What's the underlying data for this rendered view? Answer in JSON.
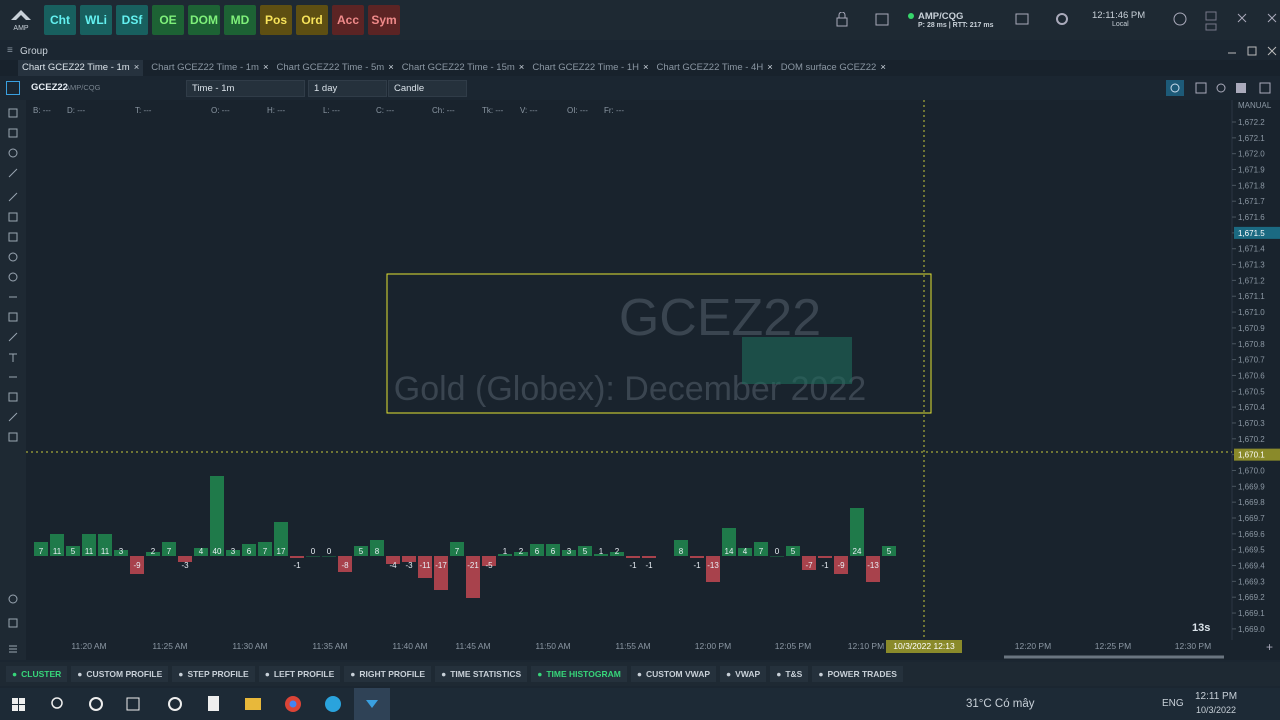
{
  "topbar": {
    "logo": "AMP",
    "buttons": [
      "Cht",
      "WLi",
      "DSf",
      "OE",
      "DOM",
      "MD",
      "Pos",
      "Ord",
      "Acc",
      "Sym"
    ],
    "connection": "AMP/CQG",
    "latency": "P: 28 ms | RTT: 217 ms",
    "clock": "12:11:46 PM",
    "clock_zone": "Local"
  },
  "group_title": "Group",
  "tabs": [
    "Chart GCEZ22 Time - 1m",
    "Chart GCEZ22 Time - 1m",
    "Chart GCEZ22 Time - 5m",
    "Chart GCEZ22 Time - 15m",
    "Chart GCEZ22 Time - 1H",
    "Chart GCEZ22 Time - 4H",
    "DOM surface GCEZ22"
  ],
  "toolbar": {
    "symbol": "GCEZ22",
    "feed": "AMP/CQG",
    "period": "Time - 1m",
    "range": "1 day",
    "style": "Candle"
  },
  "info_line": [
    "B: ---",
    "D: ---",
    "T: ---",
    "O: ---",
    "H: ---",
    "L: ---",
    "C: ---",
    "Ch: ---",
    "Tk: ---",
    "V: ---",
    "OI: ---",
    "Fr: ---"
  ],
  "watermark": {
    "symbol": "GCEZ22",
    "description": "Gold (Globex): December 2022"
  },
  "price_axis": {
    "mode": "MANUAL",
    "labels": [
      "1,672.2",
      "1,672.1",
      "1,672.0",
      "1,671.9",
      "1,671.8",
      "1,671.7",
      "1,671.6",
      "1,671.5",
      "1,671.4",
      "1,671.3",
      "1,671.2",
      "1,671.1",
      "1,671.0",
      "1,670.9",
      "1,670.8",
      "1,670.7",
      "1,670.6",
      "1,670.5",
      "1,670.4",
      "1,670.3",
      "1,670.2",
      "1,670.1",
      "1,670.0",
      "1,669.9",
      "1,669.8",
      "1,669.7",
      "1,669.6",
      "1,669.5",
      "1,669.4",
      "1,669.3",
      "1,669.2",
      "1,669.1",
      "1,669.0"
    ],
    "last_price": "1,671.5",
    "cursor_price": "1,670.1"
  },
  "time_axis": {
    "labels": [
      "11:20 AM",
      "11:25 AM",
      "11:30 AM",
      "11:35 AM",
      "11:40 AM",
      "11:45 AM",
      "11:50 AM",
      "11:55 AM",
      "12:00 PM",
      "12:05 PM",
      "12:10 PM",
      "12:20 PM",
      "12:25 PM",
      "12:30 PM"
    ],
    "cursor_time": "10/3/2022 12:13",
    "countdown": "13s"
  },
  "delta_histogram": {
    "values": [
      7,
      11,
      5,
      11,
      11,
      3,
      -9,
      2,
      7,
      -3,
      4,
      40,
      3,
      6,
      7,
      17,
      -1,
      0,
      0,
      -8,
      5,
      8,
      -4,
      -3,
      -11,
      -17,
      7,
      -21,
      -5,
      1,
      2,
      6,
      6,
      3,
      5,
      1,
      2,
      -1,
      -1,
      null,
      8,
      -1,
      -13,
      14,
      4,
      7,
      0,
      5,
      -7,
      -1,
      -9,
      24,
      -13,
      5
    ],
    "positive_color": "#1f7a4a",
    "negative_color": "#a8424c"
  },
  "bottom_buttons": [
    "CLUSTER",
    "CUSTOM PROFILE",
    "STEP PROFILE",
    "LEFT PROFILE",
    "RIGHT PROFILE",
    "TIME STATISTICS",
    "TIME HISTOGRAM",
    "CUSTOM VWAP",
    "VWAP",
    "T&S",
    "POWER TRADES"
  ],
  "taskbar": {
    "weather": "31°C Có mây",
    "language": "ENG",
    "time": "12:11 PM",
    "date": "10/3/2022"
  }
}
